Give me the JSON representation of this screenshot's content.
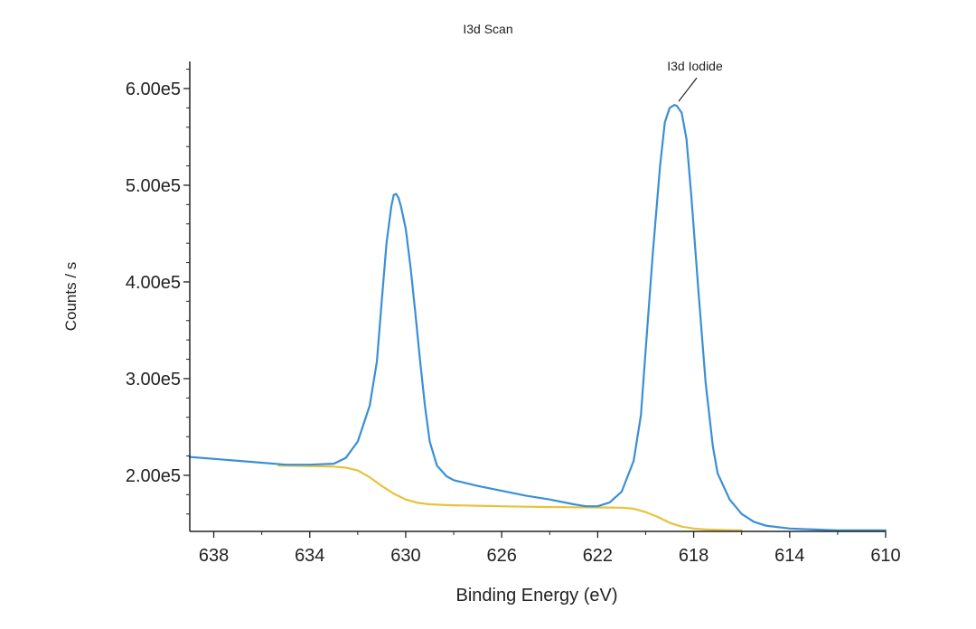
{
  "chart_data": {
    "type": "line",
    "title": "I3d Scan",
    "xlabel": "Binding Energy (eV)",
    "ylabel": "Counts / s",
    "xlim": [
      639,
      610
    ],
    "ylim": [
      142000,
      628000
    ],
    "x_reversed": true,
    "x_ticks": [
      {
        "value": 638,
        "label": "638"
      },
      {
        "value": 634,
        "label": "634"
      },
      {
        "value": 630,
        "label": "630"
      },
      {
        "value": 626,
        "label": "626"
      },
      {
        "value": 622,
        "label": "622"
      },
      {
        "value": 618,
        "label": "618"
      },
      {
        "value": 614,
        "label": "614"
      },
      {
        "value": 610,
        "label": "610"
      }
    ],
    "y_ticks": [
      {
        "value": 200000,
        "label": "2.00e5"
      },
      {
        "value": 300000,
        "label": "3.00e5"
      },
      {
        "value": 400000,
        "label": "4.00e5"
      },
      {
        "value": 500000,
        "label": "5.00e5"
      },
      {
        "value": 600000,
        "label": "6.00e5"
      }
    ],
    "grid": false,
    "annotations": [
      {
        "text": "I3d Iodide",
        "x": 618.7,
        "y": 583000
      }
    ],
    "series": [
      {
        "color": "#3a8fd6",
        "x": [
          639,
          637.5,
          636,
          635,
          634,
          633,
          632.5,
          632,
          631.5,
          631.2,
          631,
          630.8,
          630.6,
          630.5,
          630.4,
          630.3,
          630.2,
          630,
          629.8,
          629.6,
          629.4,
          629.2,
          629,
          628.7,
          628.3,
          628,
          627,
          626,
          625,
          624,
          623,
          622.5,
          622,
          621.5,
          621,
          620.5,
          620.2,
          620,
          619.7,
          619.4,
          619.2,
          619,
          618.8,
          618.7,
          618.5,
          618.3,
          618.1,
          617.8,
          617.5,
          617.2,
          617,
          616.5,
          616,
          615.5,
          615,
          614,
          613,
          612,
          611,
          610
        ],
        "y": [
          219000,
          216000,
          213000,
          211000,
          211000,
          212000,
          218000,
          235000,
          272000,
          318000,
          380000,
          440000,
          478000,
          490000,
          491000,
          487000,
          478000,
          455000,
          415000,
          368000,
          318000,
          272000,
          235000,
          210000,
          199000,
          195000,
          189000,
          184000,
          179000,
          175000,
          170000,
          168000,
          168000,
          172000,
          183000,
          215000,
          262000,
          330000,
          430000,
          520000,
          565000,
          580000,
          583000,
          582000,
          575000,
          548000,
          490000,
          390000,
          295000,
          230000,
          202000,
          175000,
          160000,
          152000,
          148000,
          145000,
          144000,
          143000,
          143000,
          143000
        ]
      },
      {
        "color": "#e8c23a",
        "x": [
          635.3,
          634,
          633,
          632.5,
          632,
          631.5,
          631,
          630.5,
          630,
          629.5,
          629,
          628.5,
          628,
          627,
          626,
          625,
          624,
          623,
          622,
          621,
          620.5,
          620,
          619.5,
          619,
          618.5,
          618,
          617.5,
          617,
          616.5,
          616
        ],
        "y": [
          210000,
          209500,
          209000,
          208000,
          205000,
          198000,
          189000,
          181000,
          175000,
          171500,
          170000,
          169500,
          169000,
          168500,
          168000,
          167500,
          167200,
          167000,
          166800,
          166500,
          165500,
          162000,
          157000,
          151000,
          147000,
          145000,
          144000,
          143500,
          143200,
          143000
        ]
      }
    ]
  }
}
